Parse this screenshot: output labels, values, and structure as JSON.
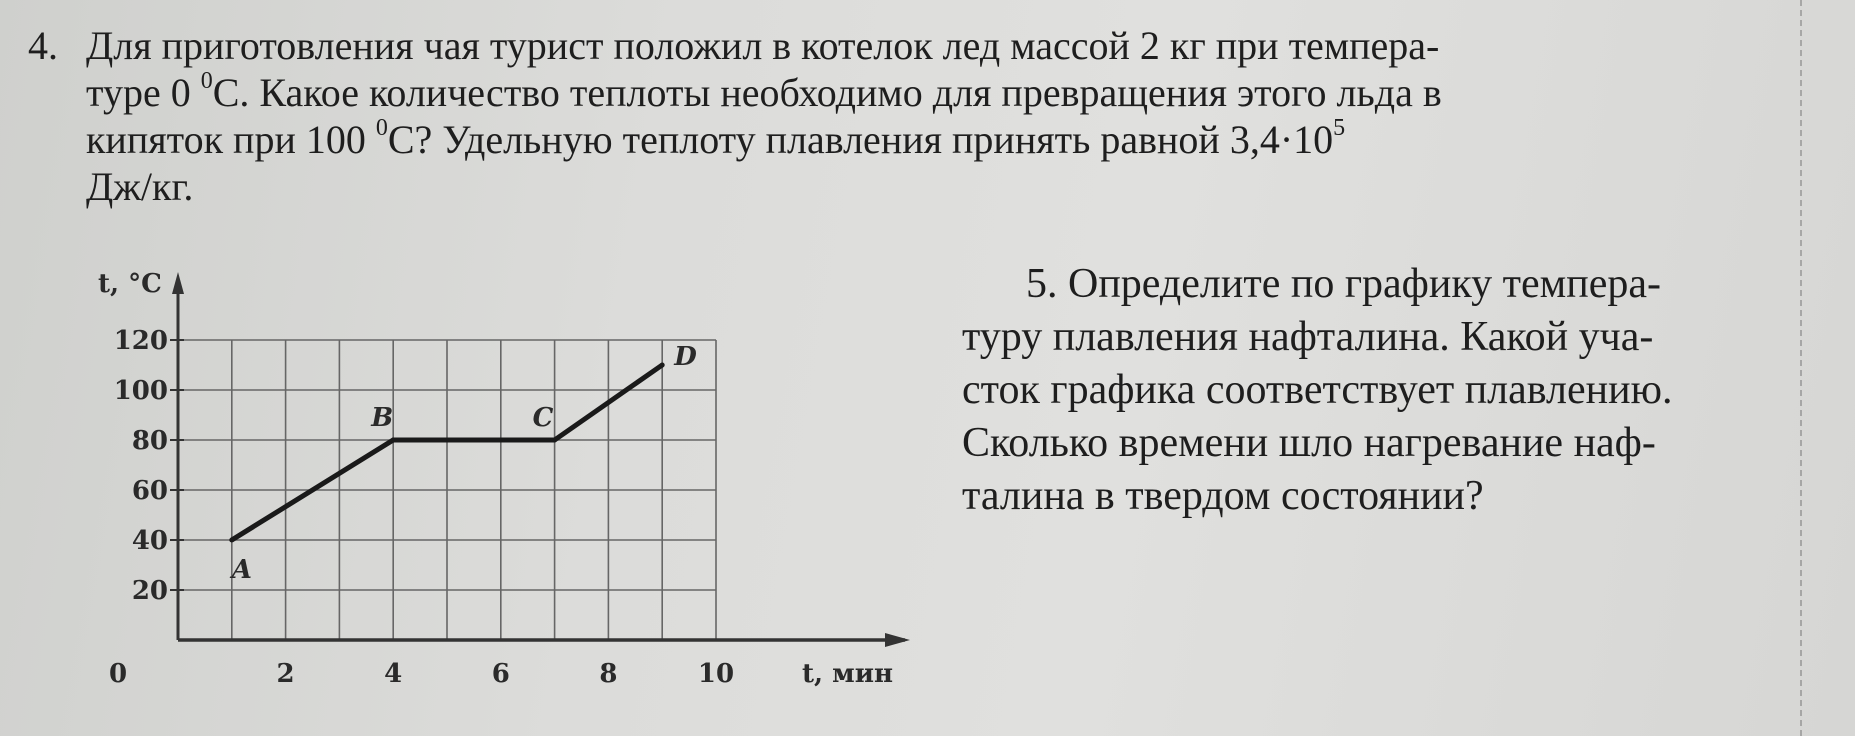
{
  "problem4": {
    "number": "4.",
    "lines": [
      "Для приготовления чая турист положил в котелок лед массой 2 кг при темпера-",
      "туре 0 ",
      "C. Какое количество теплоты необходимо для превращения этого льда в",
      "кипяток при 100 ",
      "C? Удельную теплоту плавления принять равной 3,4·10",
      "Дж/кг."
    ],
    "deg_sup": "0",
    "exp_sup": "5"
  },
  "problem5": {
    "lines": [
      "5. Определите по графику темпера-",
      "туру плавления нафталина. Какой уча-",
      "сток графика соответствует плавлению.",
      "Сколько времени шло нагревание наф-",
      "талина в твердом состоянии?"
    ]
  },
  "chart_data": {
    "type": "line",
    "xlabel": "t, мин",
    "ylabel": "t, °C",
    "xlim": [
      0,
      10
    ],
    "ylim": [
      0,
      120
    ],
    "x_ticks": [
      "0",
      "2",
      "4",
      "6",
      "8",
      "10"
    ],
    "y_ticks": [
      "20",
      "40",
      "60",
      "80",
      "100",
      "120"
    ],
    "grid": true,
    "x_grid_step": 1,
    "y_grid_step": 20,
    "points": [
      {
        "label": "A",
        "x": 1,
        "y": 40
      },
      {
        "label": "B",
        "x": 4,
        "y": 80
      },
      {
        "label": "C",
        "x": 7,
        "y": 80
      },
      {
        "label": "D",
        "x": 9,
        "y": 110
      }
    ]
  }
}
